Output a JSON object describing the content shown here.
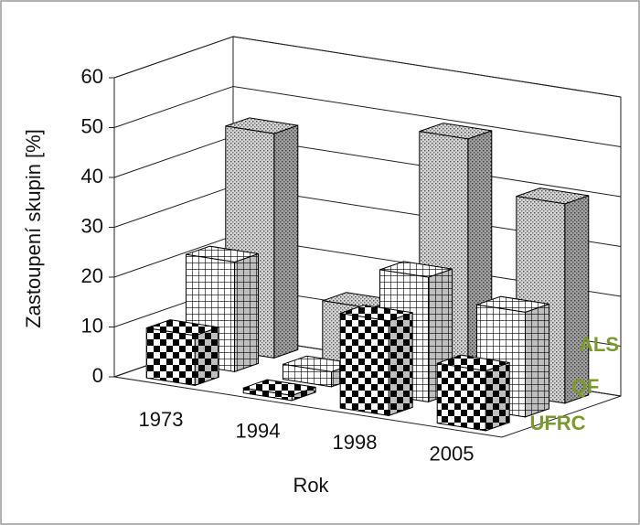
{
  "chart_data": {
    "type": "bar3d",
    "y_label": "Zastoupení skupin [%]",
    "x_label": "Rok",
    "categories": [
      "1973",
      "1994",
      "1998",
      "2005"
    ],
    "series": [
      {
        "name": "ALS",
        "values": [
          45,
          13,
          50,
          40
        ]
      },
      {
        "name": "QF",
        "values": [
          22,
          3,
          25,
          21
        ]
      },
      {
        "name": "UFRC",
        "values": [
          10,
          1,
          19,
          12
        ]
      }
    ],
    "ylim": [
      0,
      60
    ],
    "yticks": [
      0,
      10,
      20,
      30,
      40,
      50,
      60
    ],
    "grid": true
  }
}
